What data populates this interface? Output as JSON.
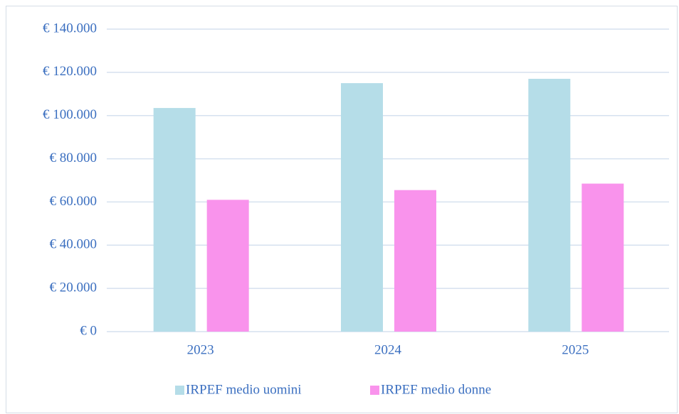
{
  "chart_data": {
    "type": "bar",
    "categories": [
      "2023",
      "2024",
      "2025"
    ],
    "series": [
      {
        "name": "IRPEF medio uomini",
        "color": "#b5dde8",
        "values": [
          103500,
          115000,
          117000
        ]
      },
      {
        "name": "IRPEF medio donne",
        "color": "#f993ec",
        "values": [
          61000,
          65500,
          68500
        ]
      }
    ],
    "ylim": [
      0,
      140000
    ],
    "yticks": [
      {
        "value": 0,
        "label": "€ 0"
      },
      {
        "value": 20000,
        "label": "€ 20.000"
      },
      {
        "value": 40000,
        "label": "€ 40.000"
      },
      {
        "value": 60000,
        "label": "€ 60.000"
      },
      {
        "value": 80000,
        "label": "€ 80.000"
      },
      {
        "value": 100000,
        "label": "€ 100.000"
      },
      {
        "value": 120000,
        "label": "€ 120.000"
      },
      {
        "value": 140000,
        "label": "€ 140.000"
      }
    ],
    "grid": true,
    "legend": "bottom"
  }
}
